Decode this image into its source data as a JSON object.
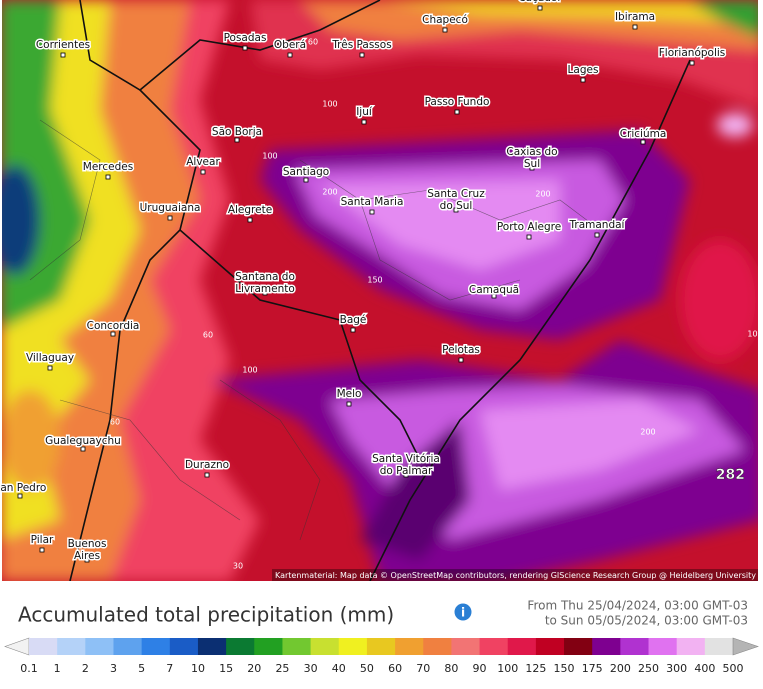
{
  "map": {
    "places": [
      {
        "name": "Corrientes"
      },
      {
        "name": "Posadas"
      },
      {
        "name": "Oberá"
      },
      {
        "name": "Três Passos"
      },
      {
        "name": "Chapecó"
      },
      {
        "name": "Caçador"
      },
      {
        "name": "Ibirama"
      },
      {
        "name": "Lages"
      },
      {
        "name": "Florianópolis"
      },
      {
        "name": "Passo Fundo"
      },
      {
        "name": "Ijuí"
      },
      {
        "name": "São Borja"
      },
      {
        "name": "Criciúma"
      },
      {
        "name": "Caxias do Sul"
      },
      {
        "name": "Mercedes"
      },
      {
        "name": "Alvear"
      },
      {
        "name": "Santiago"
      },
      {
        "name": "Santa Maria"
      },
      {
        "name": "Santa Cruz do Sul"
      },
      {
        "name": "Uruguaiana"
      },
      {
        "name": "Alegrete"
      },
      {
        "name": "Porto Alegre"
      },
      {
        "name": "Tramandaí"
      },
      {
        "name": "Santana do Livramento"
      },
      {
        "name": "Camaquã"
      },
      {
        "name": "Bagé"
      },
      {
        "name": "Concordia"
      },
      {
        "name": "Villaguay"
      },
      {
        "name": "Pelotas"
      },
      {
        "name": "Melo"
      },
      {
        "name": "Gualeguaychu"
      },
      {
        "name": "Durazno"
      },
      {
        "name": "Santa Vitória do Palmar"
      },
      {
        "name": "San Pedro"
      },
      {
        "name": "Pilar"
      },
      {
        "name": "Buenos Aires"
      }
    ],
    "contour_labels": [
      "60",
      "100",
      "200",
      "150",
      "60",
      "100",
      "200",
      "30",
      "60",
      "100",
      "100",
      "200"
    ],
    "max_label": "282",
    "attribution": "Kartenmaterial: Map data © OpenStreetMap contributors, rendering GIScience Research Group @ Heidelberg University"
  },
  "footer": {
    "title": "Accumulated total precipitation (mm)",
    "from": "From Thu 25/04/2024, 03:00 GMT-03",
    "to": "to Sun 05/05/2024, 03:00 GMT-03"
  },
  "legend": {
    "labels": [
      0.1,
      1,
      2,
      3,
      5,
      7,
      10,
      15,
      20,
      25,
      30,
      40,
      50,
      60,
      70,
      80,
      90,
      100,
      125,
      150,
      175,
      200,
      250,
      300,
      400,
      500
    ],
    "colors": [
      "#f2f2f2",
      "#d8dbf5",
      "#b4d2f8",
      "#8ec0f6",
      "#5ea2ee",
      "#2e80e6",
      "#1a5cc6",
      "#0b2f72",
      "#0b7a32",
      "#22a022",
      "#72c830",
      "#c8e030",
      "#f0f020",
      "#e8c820",
      "#f0a030",
      "#f08040",
      "#f27474",
      "#f04262",
      "#e0184a",
      "#c00022",
      "#820012",
      "#7e0090",
      "#b032d0",
      "#e072f0",
      "#f2b2f2",
      "#e2e2e2",
      "#b4b4b4"
    ]
  }
}
